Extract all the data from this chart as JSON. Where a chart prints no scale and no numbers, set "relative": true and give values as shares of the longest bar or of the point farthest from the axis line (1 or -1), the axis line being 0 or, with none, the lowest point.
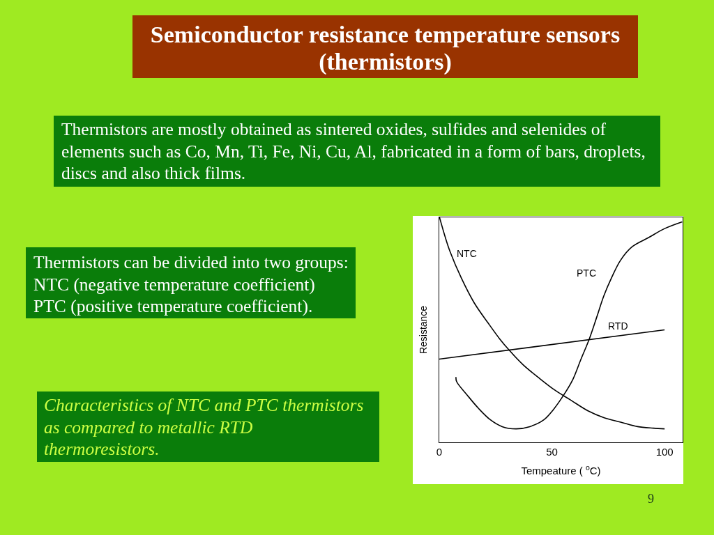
{
  "chart_data": {
    "type": "line",
    "title": "Semiconductor resistance temperature sensors (thermistors)",
    "xlabel": "Tempeature ( $^{o}$C)",
    "ylabel": "Resistance",
    "annotations": [
      "Thermistors are mostly obtained as sintered oxides, sulfides and selenides  of elements such as Co, Mn, Ti, Fe, Ni, Cu, Al, fabricated in a form of bars, droplets, discs  and also thick films.",
      "Thermistors can be divided into two groups:\nNTC (negative temperature coefficient)\nPTC (positive temperature coefficient).",
      "Characteristics of NTC and PTC thermistors as compared to metallic RTD thermoresistors.",
      "9"
    ],
    "relative": true,
    "xlim": [
      0,
      108
    ],
    "xticks": [
      0,
      50,
      100
    ],
    "tick_labels": "x",
    "grid": false,
    "legend": false,
    "marker": "none",
    "line_style": "solid",
    "series": [
      {
        "name": "NTC",
        "color": "#000000",
        "x": [
          0.1,
          2.7,
          4.7,
          9.8,
          15.5,
          21.7,
          26.8,
          31.0,
          37.2,
          44.4,
          51.6,
          58,
          66.0,
          73,
          80.5,
          88,
          95,
          100
        ],
        "values": [
          1.0,
          0.91,
          0.85,
          0.73,
          0.62,
          0.53,
          0.46,
          0.41,
          0.345,
          0.285,
          0.23,
          0.19,
          0.14,
          0.11,
          0.09,
          0.07,
          0.063,
          0.06
        ]
      },
      {
        "name": "PTC",
        "color": "#000000",
        "x": [
          7.4,
          7.7,
          12.4,
          17.5,
          22.7,
          27.9,
          34.1,
          40.2,
          46.4,
          50.6,
          55.2,
          59.3,
          62.9,
          66.6,
          70.0,
          73.0,
          76.4,
          80.5,
          85.7,
          92.9,
          100,
          107.8
        ],
        "values": [
          0.29,
          0.27,
          0.21,
          0.15,
          0.1,
          0.07,
          0.06,
          0.07,
          0.1,
          0.145,
          0.21,
          0.28,
          0.37,
          0.46,
          0.56,
          0.65,
          0.73,
          0.81,
          0.87,
          0.91,
          0.95,
          0.98
        ]
      },
      {
        "name": "RTD",
        "color": "#000000",
        "x": [
          0,
          100
        ],
        "values": [
          0.37,
          0.5
        ]
      }
    ]
  }
}
